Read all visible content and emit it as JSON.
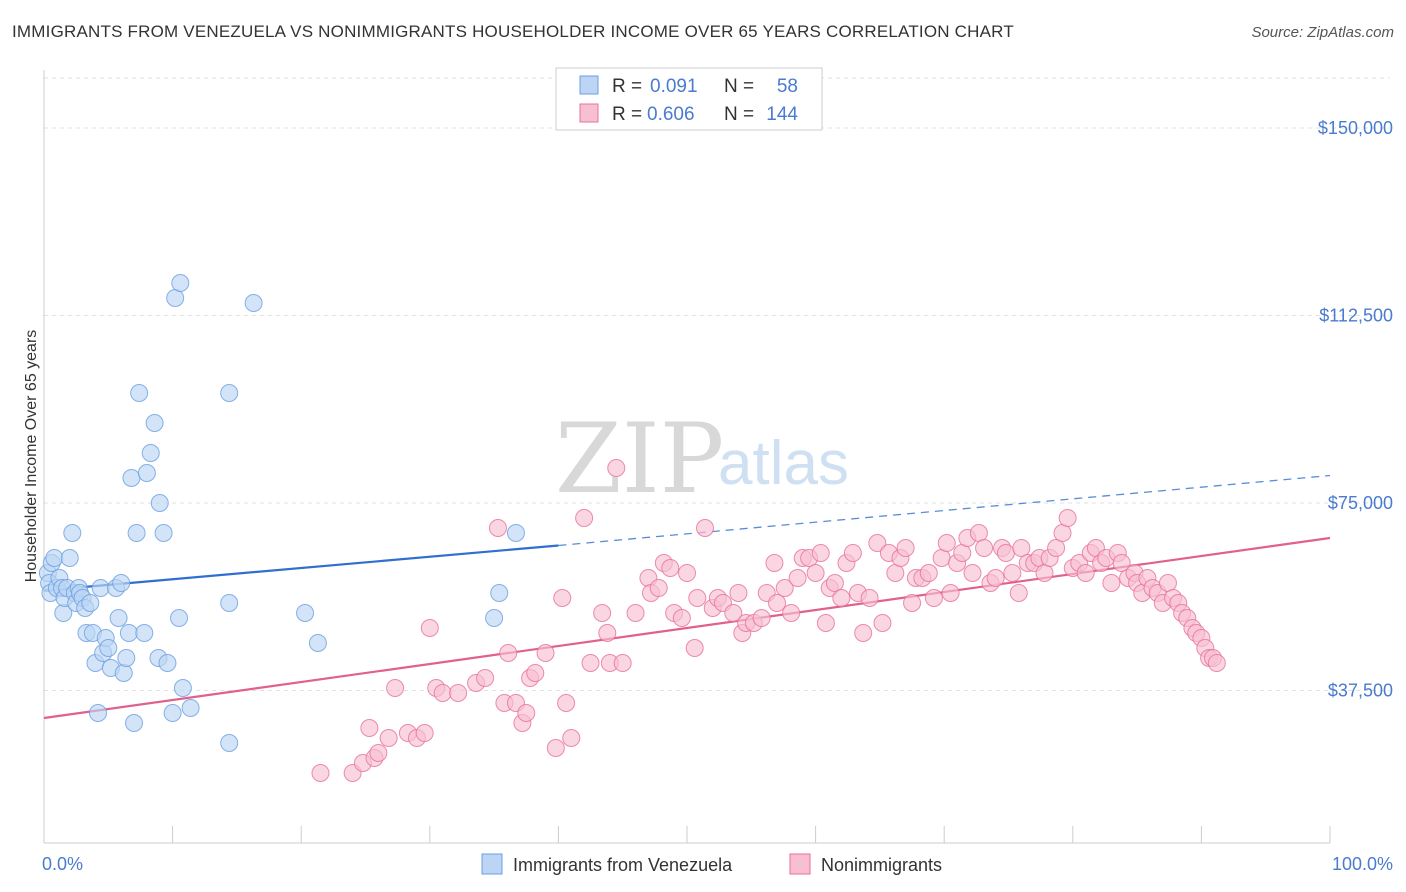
{
  "title": "IMMIGRANTS FROM VENEZUELA VS NONIMMIGRANTS HOUSEHOLDER INCOME OVER 65 YEARS CORRELATION CHART",
  "source": "Source: ZipAtlas.com",
  "watermark": {
    "zip": "ZIP",
    "atlas": "atlas"
  },
  "colors": {
    "blue": "#6a9fe0",
    "blue_fill": "#bcd5f5",
    "pink": "#e8709a",
    "pink_fill": "#f7c0d2",
    "tick": "#4a7bd0"
  },
  "legend": {
    "r_label": "R =",
    "n_label": "N =",
    "rows": [
      {
        "r": "0.091",
        "n": "58"
      },
      {
        "r": "0.606",
        "n": "144"
      }
    ]
  },
  "chart_data": {
    "type": "scatter",
    "xlabel": "",
    "ylabel": "Householder Income Over 65 years",
    "xlim": [
      0,
      100
    ],
    "ylim": [
      7000,
      160000
    ],
    "x_tick_labels": [
      "0.0%",
      "100.0%"
    ],
    "y_ticks": [
      37500,
      75000,
      112500,
      150000
    ],
    "y_tick_labels": [
      "$37,500",
      "$75,000",
      "$112,500",
      "$150,000"
    ],
    "grid": true,
    "series": [
      {
        "name": "Immigrants from Venezuela",
        "trend": {
          "x": [
            0,
            40
          ],
          "y": [
            57500,
            66500
          ],
          "dashed_to": [
            100,
            80500
          ]
        },
        "points": [
          [
            0.3,
            61
          ],
          [
            0.4,
            59
          ],
          [
            0.5,
            57
          ],
          [
            0.6,
            63
          ],
          [
            0.8,
            64
          ],
          [
            1.0,
            58
          ],
          [
            1.2,
            60
          ],
          [
            1.4,
            58
          ],
          [
            1.5,
            53
          ],
          [
            1.6,
            56
          ],
          [
            1.8,
            58
          ],
          [
            2.0,
            64
          ],
          [
            2.2,
            69
          ],
          [
            2.4,
            57
          ],
          [
            2.5,
            55
          ],
          [
            2.7,
            58
          ],
          [
            2.8,
            57
          ],
          [
            3.0,
            56
          ],
          [
            3.2,
            54
          ],
          [
            3.3,
            49
          ],
          [
            3.6,
            55
          ],
          [
            3.8,
            49
          ],
          [
            4.0,
            43
          ],
          [
            4.2,
            33
          ],
          [
            4.4,
            58
          ],
          [
            4.6,
            45
          ],
          [
            4.8,
            48
          ],
          [
            5.0,
            46
          ],
          [
            5.2,
            42
          ],
          [
            5.6,
            58
          ],
          [
            5.8,
            52
          ],
          [
            6.0,
            59
          ],
          [
            6.2,
            41
          ],
          [
            6.4,
            44
          ],
          [
            6.6,
            49
          ],
          [
            6.8,
            80
          ],
          [
            7.0,
            31
          ],
          [
            7.2,
            69
          ],
          [
            7.4,
            97
          ],
          [
            7.8,
            49
          ],
          [
            8.0,
            81
          ],
          [
            8.3,
            85
          ],
          [
            8.6,
            91
          ],
          [
            8.9,
            44
          ],
          [
            9.0,
            75
          ],
          [
            9.3,
            69
          ],
          [
            9.6,
            43
          ],
          [
            10.0,
            33
          ],
          [
            10.2,
            116
          ],
          [
            10.5,
            52
          ],
          [
            10.6,
            119
          ],
          [
            10.8,
            38
          ],
          [
            11.4,
            34
          ],
          [
            14.4,
            55
          ],
          [
            14.4,
            27
          ],
          [
            14.4,
            97
          ],
          [
            16.3,
            115
          ],
          [
            20.3,
            53
          ],
          [
            21.3,
            47
          ],
          [
            35.0,
            52
          ],
          [
            35.4,
            57
          ],
          [
            36.7,
            69
          ]
        ]
      },
      {
        "name": "Nonimmigrants",
        "trend": {
          "x": [
            0,
            100
          ],
          "y": [
            32000,
            68000
          ]
        },
        "points": [
          [
            21.5,
            21
          ],
          [
            24.0,
            21
          ],
          [
            24.8,
            23
          ],
          [
            25.3,
            30
          ],
          [
            25.7,
            24
          ],
          [
            26.0,
            25
          ],
          [
            26.8,
            28
          ],
          [
            27.3,
            38
          ],
          [
            28.3,
            29
          ],
          [
            29.0,
            28
          ],
          [
            29.6,
            29
          ],
          [
            30.0,
            50
          ],
          [
            30.5,
            38
          ],
          [
            31.0,
            37
          ],
          [
            32.2,
            37
          ],
          [
            33.6,
            39
          ],
          [
            34.3,
            40
          ],
          [
            35.3,
            70
          ],
          [
            35.8,
            35
          ],
          [
            36.1,
            45
          ],
          [
            36.7,
            35
          ],
          [
            37.2,
            31
          ],
          [
            37.5,
            33
          ],
          [
            37.8,
            40
          ],
          [
            38.2,
            41
          ],
          [
            39.0,
            45
          ],
          [
            39.8,
            26
          ],
          [
            40.3,
            56
          ],
          [
            40.6,
            35
          ],
          [
            41.0,
            28
          ],
          [
            42.0,
            72
          ],
          [
            42.5,
            43
          ],
          [
            43.4,
            53
          ],
          [
            43.8,
            49
          ],
          [
            44.0,
            43
          ],
          [
            44.5,
            82
          ],
          [
            45.0,
            43
          ],
          [
            46.0,
            53
          ],
          [
            47.0,
            60
          ],
          [
            47.2,
            57
          ],
          [
            47.8,
            58
          ],
          [
            48.2,
            63
          ],
          [
            48.7,
            62
          ],
          [
            49.0,
            53
          ],
          [
            49.6,
            52
          ],
          [
            50.0,
            61
          ],
          [
            50.6,
            46
          ],
          [
            50.8,
            56
          ],
          [
            51.4,
            70
          ],
          [
            52.0,
            54
          ],
          [
            52.4,
            56
          ],
          [
            52.8,
            55
          ],
          [
            53.6,
            53
          ],
          [
            54.0,
            57
          ],
          [
            54.3,
            49
          ],
          [
            54.6,
            51
          ],
          [
            55.2,
            51
          ],
          [
            55.8,
            52
          ],
          [
            56.2,
            57
          ],
          [
            56.8,
            63
          ],
          [
            57.0,
            55
          ],
          [
            57.6,
            58
          ],
          [
            58.1,
            53
          ],
          [
            58.6,
            60
          ],
          [
            59.0,
            64
          ],
          [
            59.5,
            64
          ],
          [
            60.0,
            61
          ],
          [
            60.4,
            65
          ],
          [
            60.8,
            51
          ],
          [
            61.1,
            58
          ],
          [
            61.5,
            59
          ],
          [
            62.0,
            56
          ],
          [
            62.4,
            63
          ],
          [
            62.9,
            65
          ],
          [
            63.3,
            57
          ],
          [
            63.7,
            49
          ],
          [
            64.2,
            56
          ],
          [
            64.8,
            67
          ],
          [
            65.2,
            51
          ],
          [
            65.7,
            65
          ],
          [
            66.2,
            61
          ],
          [
            66.6,
            64
          ],
          [
            67.0,
            66
          ],
          [
            67.5,
            55
          ],
          [
            67.8,
            60
          ],
          [
            68.3,
            60
          ],
          [
            68.8,
            61
          ],
          [
            69.2,
            56
          ],
          [
            69.8,
            64
          ],
          [
            70.2,
            67
          ],
          [
            70.5,
            57
          ],
          [
            71.0,
            63
          ],
          [
            71.4,
            65
          ],
          [
            71.8,
            68
          ],
          [
            72.2,
            61
          ],
          [
            72.7,
            69
          ],
          [
            73.1,
            66
          ],
          [
            73.6,
            59
          ],
          [
            74.0,
            60
          ],
          [
            74.5,
            66
          ],
          [
            74.8,
            65
          ],
          [
            75.3,
            61
          ],
          [
            75.8,
            57
          ],
          [
            76.0,
            66
          ],
          [
            76.5,
            63
          ],
          [
            77.0,
            63
          ],
          [
            77.4,
            64
          ],
          [
            77.8,
            61
          ],
          [
            78.2,
            64
          ],
          [
            78.7,
            66
          ],
          [
            79.2,
            69
          ],
          [
            79.6,
            72
          ],
          [
            80.0,
            62
          ],
          [
            80.5,
            63
          ],
          [
            81.0,
            61
          ],
          [
            81.4,
            65
          ],
          [
            81.8,
            66
          ],
          [
            82.2,
            63
          ],
          [
            82.6,
            64
          ],
          [
            83.0,
            59
          ],
          [
            83.5,
            65
          ],
          [
            83.8,
            63
          ],
          [
            84.3,
            60
          ],
          [
            84.8,
            61
          ],
          [
            85.0,
            59
          ],
          [
            85.4,
            57
          ],
          [
            85.8,
            60
          ],
          [
            86.2,
            58
          ],
          [
            86.6,
            57
          ],
          [
            87.0,
            55
          ],
          [
            87.4,
            59
          ],
          [
            87.8,
            56
          ],
          [
            88.2,
            55
          ],
          [
            88.5,
            53
          ],
          [
            88.9,
            52
          ],
          [
            89.3,
            50
          ],
          [
            89.6,
            49
          ],
          [
            90.0,
            48
          ],
          [
            90.3,
            46
          ],
          [
            90.6,
            44
          ],
          [
            90.9,
            44
          ],
          [
            91.2,
            43
          ]
        ]
      }
    ]
  },
  "bottom_legend": [
    "Immigrants from Venezuela",
    "Nonimmigrants"
  ]
}
